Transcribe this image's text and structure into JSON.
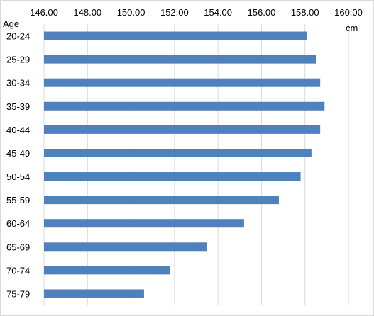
{
  "chart_data": {
    "type": "bar",
    "orientation": "horizontal",
    "title": "",
    "xlabel": "cm",
    "ylabel": "Age",
    "xlim": [
      146,
      160
    ],
    "x_ticks": [
      "146.00",
      "148.00",
      "150.00",
      "152.00",
      "154.00",
      "156.00",
      "158.00",
      "160.00"
    ],
    "x_axis_position": "top",
    "grid": true,
    "legend": "none",
    "bar_color": "#4f81bd",
    "grid_color": "#d9d9d9",
    "categories": [
      "20-24",
      "25-29",
      "30-34",
      "35-39",
      "40-44",
      "45-49",
      "50-54",
      "55-59",
      "60-64",
      "65-69",
      "70-74",
      "75-79"
    ],
    "values": [
      158.1,
      158.5,
      158.7,
      158.9,
      158.7,
      158.3,
      157.8,
      156.8,
      155.2,
      153.5,
      151.8,
      150.6
    ]
  }
}
